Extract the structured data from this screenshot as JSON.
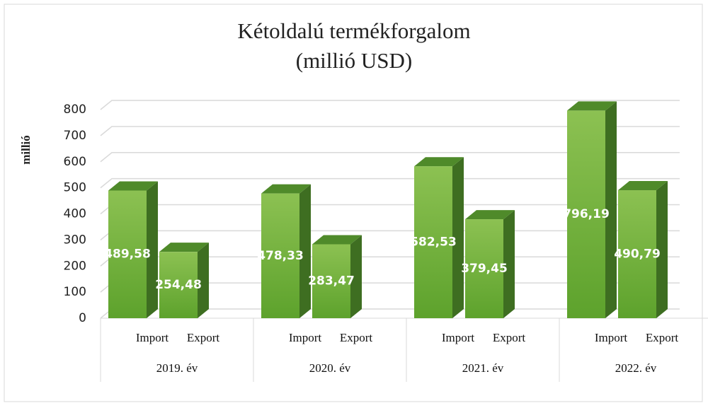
{
  "chart_data": {
    "type": "bar3d",
    "title": "Kétoldalú termékforgalom",
    "subtitle": "(millió USD)",
    "y_label": "millió",
    "categories": [
      "2019. év",
      "2020. év",
      "2021. év",
      "2022. év"
    ],
    "series": [
      {
        "name": "Import",
        "color": "#70ad47",
        "values": [
          489.58,
          478.33,
          582.53,
          796.19
        ],
        "value_labels": [
          "489,58",
          "478,33",
          "582,53",
          "796,19"
        ]
      },
      {
        "name": "Export",
        "color": "#70ad47",
        "values": [
          254.48,
          283.47,
          379.45,
          490.79
        ],
        "value_labels": [
          "254,48",
          "283,47",
          "379,45",
          "490,79"
        ]
      }
    ],
    "ylim": [
      0,
      800
    ],
    "yticks": [
      0,
      100,
      200,
      300,
      400,
      500,
      600,
      700,
      800
    ],
    "grid": true
  }
}
